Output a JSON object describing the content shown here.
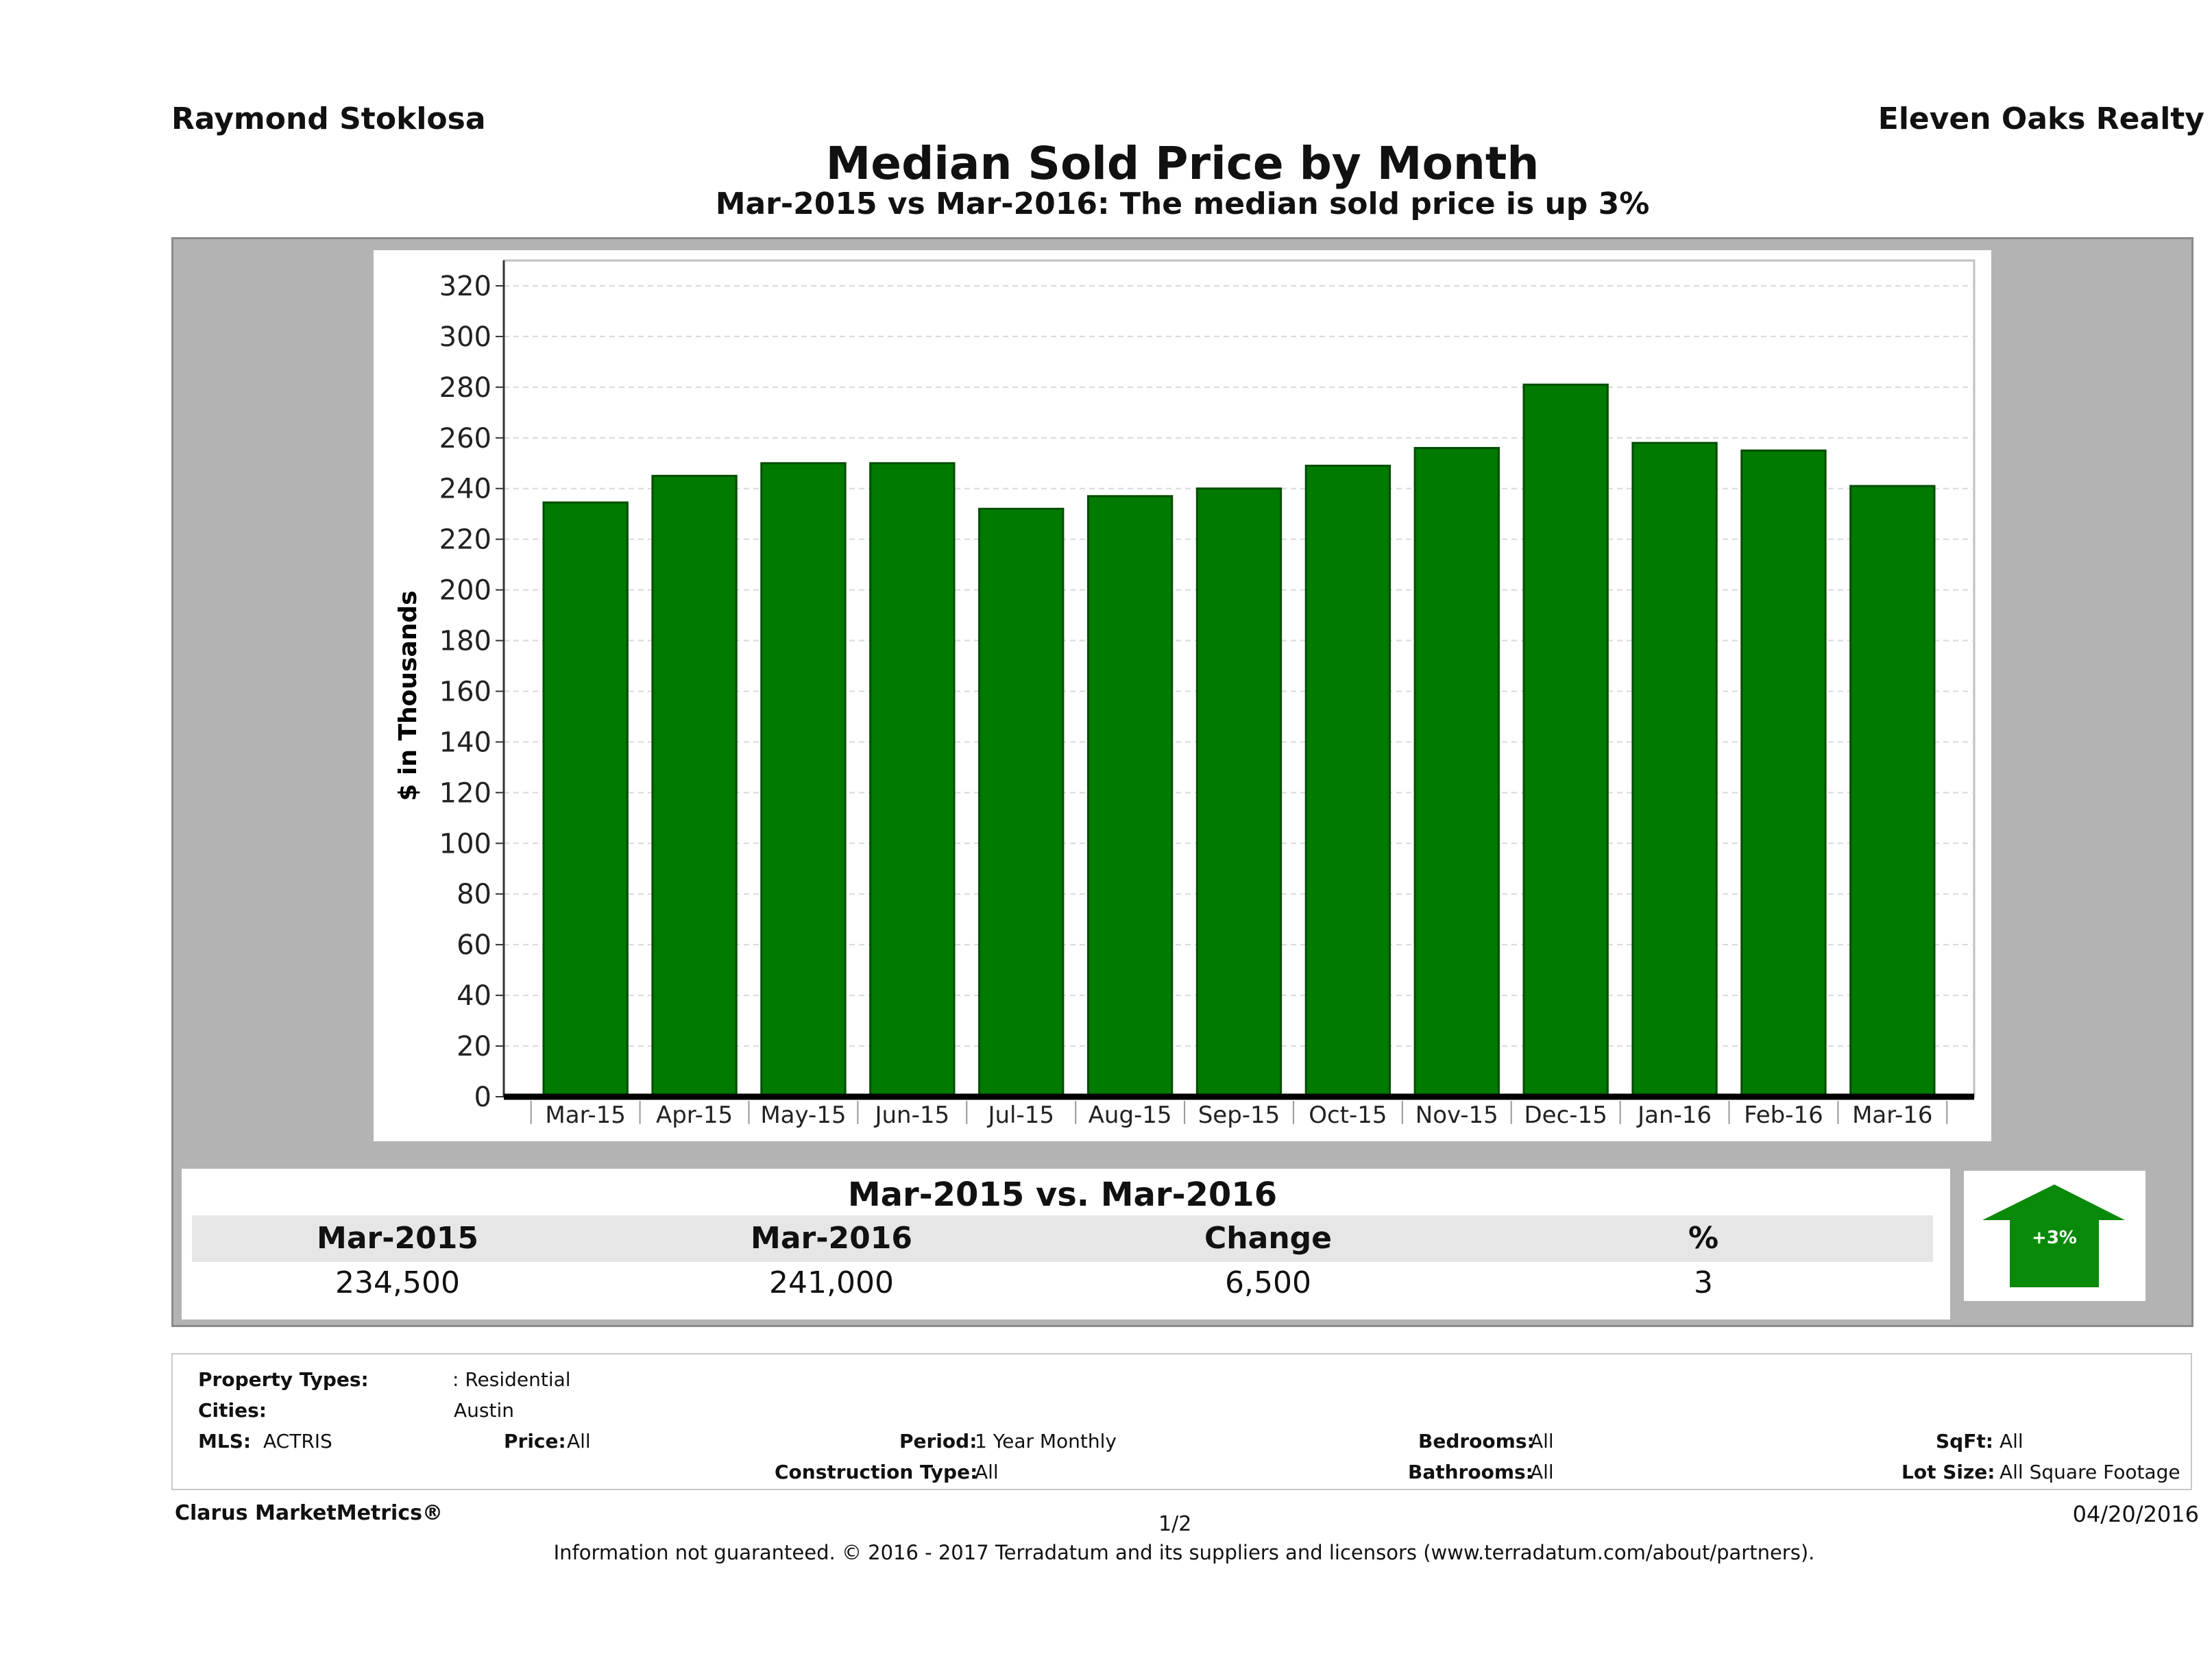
{
  "header": {
    "agent": "Raymond Stoklosa",
    "company": "Eleven Oaks Realty",
    "title": "Median Sold Price by Month",
    "subtitle": "Mar-2015 vs Mar-2016: The median sold price is up 3%"
  },
  "colors": {
    "bar": "#007a00",
    "bar_edge": "#004d00",
    "arrow": "#0a8a0a",
    "grid": "#d9d9d9"
  },
  "chart_data": {
    "type": "bar",
    "title": "Median Sold Price by Month",
    "xlabel": "",
    "ylabel": "$ in Thousands",
    "categories": [
      "Mar-15",
      "Apr-15",
      "May-15",
      "Jun-15",
      "Jul-15",
      "Aug-15",
      "Sep-15",
      "Oct-15",
      "Nov-15",
      "Dec-15",
      "Jan-16",
      "Feb-16",
      "Mar-16"
    ],
    "values": [
      234.5,
      245,
      250,
      250,
      232,
      237,
      240,
      249,
      256,
      281,
      258,
      255,
      241
    ],
    "ylim": [
      0,
      330
    ],
    "yticks": [
      0,
      20,
      40,
      60,
      80,
      100,
      120,
      140,
      160,
      180,
      200,
      220,
      240,
      260,
      280,
      300,
      320
    ],
    "grid": true
  },
  "summary": {
    "title": "Mar-2015 vs. Mar-2016",
    "headers": [
      "Mar-2015",
      "Mar-2016",
      "Change",
      "%"
    ],
    "values": [
      "234,500",
      "241,000",
      "6,500",
      "3"
    ],
    "arrow_label": "+3%"
  },
  "filters": {
    "property_types_label": "Property Types:",
    "property_types_value": ": Residential",
    "cities_label": "Cities:",
    "cities_value": "Austin",
    "mls_label": "MLS:",
    "mls_value": "ACTRIS",
    "price_label": "Price:",
    "price_value": "All",
    "period_label": "Period:",
    "period_value": "1 Year Monthly",
    "bedrooms_label": "Bedrooms:",
    "bedrooms_value": "All",
    "sqft_label": "SqFt:",
    "sqft_value": "All",
    "construction_label": "Construction Type:",
    "construction_value": "All",
    "bathrooms_label": "Bathrooms:",
    "bathrooms_value": "All",
    "lot_label": "Lot Size:",
    "lot_value": "All Square Footage"
  },
  "footer": {
    "brand": "Clarus MarketMetrics®",
    "page": "1/2",
    "date": "04/20/2016",
    "disclaimer": "Information not guaranteed. © 2016 - 2017 Terradatum and its suppliers and licensors (www.terradatum.com/about/partners)."
  }
}
